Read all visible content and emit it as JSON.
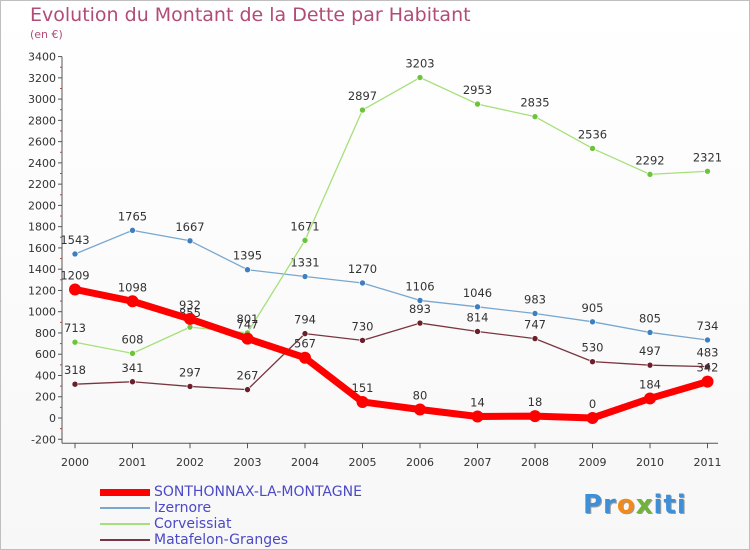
{
  "chart_data": {
    "type": "line",
    "title": "Evolution du Montant de la Dette par Habitant",
    "unit": "(en €)",
    "x": [
      "2000",
      "2001",
      "2002",
      "2003",
      "2004",
      "2005",
      "2006",
      "2007",
      "2008",
      "2009",
      "2010",
      "2011"
    ],
    "yticks": [
      -200,
      0,
      200,
      400,
      600,
      800,
      1000,
      1200,
      1400,
      1600,
      1800,
      2000,
      2200,
      2400,
      2600,
      2800,
      3000,
      3200,
      3400
    ],
    "ylim": [
      -200,
      3400
    ],
    "grid": false,
    "legend_position": "bottom-left",
    "series": [
      {
        "name": "SONTHONNAX-LA-MONTAGNE",
        "color": "#ff0000",
        "point_color": "#ff0000",
        "values": [
          1209,
          1098,
          932,
          747,
          567,
          151,
          80,
          14,
          18,
          0,
          184,
          342
        ]
      },
      {
        "name": "Izernore",
        "color": "#79a7cf",
        "point_color": "#3f7fbf",
        "values": [
          1543,
          1765,
          1667,
          1395,
          1331,
          1270,
          1106,
          1046,
          983,
          905,
          805,
          734
        ]
      },
      {
        "name": "Corveissiat",
        "color": "#a6e07a",
        "point_color": "#6cc43a",
        "values": [
          713,
          608,
          855,
          801,
          1671,
          2897,
          3203,
          2953,
          2835,
          2536,
          2292,
          2321
        ]
      },
      {
        "name": "Matafelon-Granges",
        "color": "#7a3640",
        "point_color": "#6b1f2a",
        "values": [
          318,
          341,
          297,
          267,
          794,
          730,
          893,
          814,
          747,
          530,
          497,
          483
        ]
      }
    ]
  },
  "logo": {
    "p1": "Pr",
    "p2": "o",
    "p3": "x",
    "p4": "iti"
  }
}
